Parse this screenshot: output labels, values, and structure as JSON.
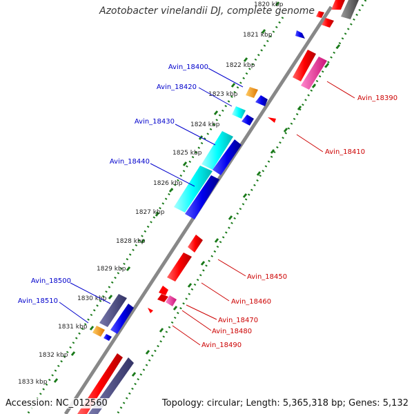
{
  "title": "Azotobacter vinelandii DJ, complete genome",
  "footer": {
    "accession": "Accession: NC_012560",
    "summary": "Topology: circular; Length: 5,365,318 bp; Genes: 5,132"
  },
  "colors": {
    "backbone": "#808080",
    "tick": "#1a7a1a",
    "red": "#ff0000",
    "blue": "#0000ee",
    "cyan": "#00ffff",
    "orange": "#ff9900",
    "magenta": "#ff33aa",
    "purple": "#4a4a88",
    "darkgray": "#666666",
    "label_left": "#0000cc",
    "label_right": "#cc0000"
  },
  "ticks": [
    "1820 kbp",
    "1821 kbp",
    "1822 kbp",
    "1823 kbp",
    "1824 kbp",
    "1825 kbp",
    "1826 kbp",
    "1827 kbp",
    "1828 kbp",
    "1829 kbp",
    "1830 kbp",
    "1831 kbp",
    "1832 kbp",
    "1833 kbp"
  ],
  "genes_left": [
    {
      "label": "Avin_18400"
    },
    {
      "label": "Avin_18420"
    },
    {
      "label": "Avin_18430"
    },
    {
      "label": "Avin_18440"
    },
    {
      "label": "Avin_18500"
    },
    {
      "label": "Avin_18510"
    }
  ],
  "genes_right": [
    {
      "label": "Avin_18390"
    },
    {
      "label": "Avin_18410"
    },
    {
      "label": "Avin_18450"
    },
    {
      "label": "Avin_18460"
    },
    {
      "label": "Avin_18470"
    },
    {
      "label": "Avin_18480"
    },
    {
      "label": "Avin_18490"
    }
  ]
}
